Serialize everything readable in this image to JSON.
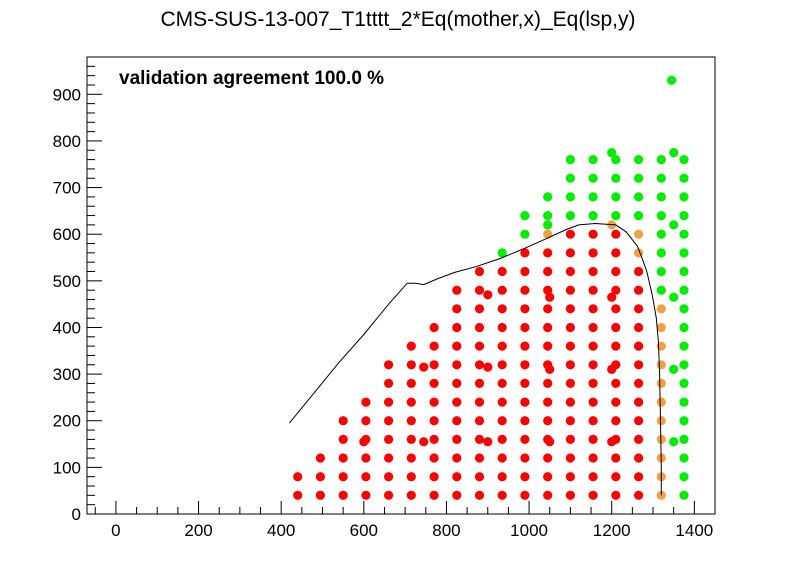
{
  "chart_data": {
    "type": "scatter",
    "title": "CMS-SUS-13-007_T1tttt_2*Eq(mother,x)_Eq(lsp,y)",
    "annotation": "validation agreement 100.0 %",
    "xlabel": "",
    "ylabel": "",
    "xlim": [
      -70,
      1450
    ],
    "ylim": [
      0,
      980
    ],
    "x_ticks": [
      0,
      200,
      400,
      600,
      800,
      1000,
      1200,
      1400
    ],
    "y_ticks": [
      0,
      100,
      200,
      300,
      400,
      500,
      600,
      700,
      800,
      900
    ],
    "grid": false,
    "colors": {
      "excluded": "#ff0000",
      "allowed": "#00ee00",
      "border": "#f5a040",
      "curve": "#000000"
    },
    "series": [
      {
        "status": "excluded",
        "points": [
          [
            440,
            40
          ],
          [
            440,
            80
          ],
          [
            495,
            40
          ],
          [
            495,
            80
          ],
          [
            495,
            120
          ],
          [
            550,
            40
          ],
          [
            550,
            80
          ],
          [
            550,
            120
          ],
          [
            550,
            160
          ],
          [
            550,
            200
          ],
          [
            605,
            40
          ],
          [
            605,
            80
          ],
          [
            605,
            120
          ],
          [
            605,
            160
          ],
          [
            605,
            200
          ],
          [
            605,
            240
          ],
          [
            600,
            155
          ],
          [
            660,
            40
          ],
          [
            660,
            80
          ],
          [
            660,
            120
          ],
          [
            660,
            160
          ],
          [
            660,
            200
          ],
          [
            660,
            240
          ],
          [
            660,
            280
          ],
          [
            660,
            320
          ],
          [
            715,
            40
          ],
          [
            715,
            80
          ],
          [
            715,
            120
          ],
          [
            715,
            160
          ],
          [
            715,
            200
          ],
          [
            715,
            240
          ],
          [
            715,
            280
          ],
          [
            715,
            320
          ],
          [
            715,
            360
          ],
          [
            745,
            155
          ],
          [
            745,
            315
          ],
          [
            770,
            40
          ],
          [
            770,
            80
          ],
          [
            770,
            120
          ],
          [
            770,
            160
          ],
          [
            770,
            200
          ],
          [
            770,
            240
          ],
          [
            770,
            280
          ],
          [
            770,
            320
          ],
          [
            770,
            360
          ],
          [
            770,
            400
          ],
          [
            825,
            40
          ],
          [
            825,
            80
          ],
          [
            825,
            120
          ],
          [
            825,
            160
          ],
          [
            825,
            200
          ],
          [
            825,
            240
          ],
          [
            825,
            280
          ],
          [
            825,
            320
          ],
          [
            825,
            360
          ],
          [
            825,
            400
          ],
          [
            825,
            440
          ],
          [
            825,
            480
          ],
          [
            880,
            40
          ],
          [
            880,
            80
          ],
          [
            880,
            120
          ],
          [
            880,
            160
          ],
          [
            880,
            200
          ],
          [
            880,
            240
          ],
          [
            880,
            280
          ],
          [
            880,
            320
          ],
          [
            880,
            360
          ],
          [
            880,
            400
          ],
          [
            880,
            440
          ],
          [
            880,
            480
          ],
          [
            880,
            520
          ],
          [
            900,
            155
          ],
          [
            900,
            315
          ],
          [
            900,
            470
          ],
          [
            935,
            40
          ],
          [
            935,
            80
          ],
          [
            935,
            120
          ],
          [
            935,
            160
          ],
          [
            935,
            200
          ],
          [
            935,
            240
          ],
          [
            935,
            280
          ],
          [
            935,
            320
          ],
          [
            935,
            360
          ],
          [
            935,
            400
          ],
          [
            935,
            440
          ],
          [
            935,
            480
          ],
          [
            935,
            520
          ],
          [
            990,
            40
          ],
          [
            990,
            80
          ],
          [
            990,
            120
          ],
          [
            990,
            160
          ],
          [
            990,
            200
          ],
          [
            990,
            240
          ],
          [
            990,
            280
          ],
          [
            990,
            320
          ],
          [
            990,
            360
          ],
          [
            990,
            400
          ],
          [
            990,
            440
          ],
          [
            990,
            480
          ],
          [
            990,
            520
          ],
          [
            990,
            560
          ],
          [
            1045,
            40
          ],
          [
            1045,
            80
          ],
          [
            1045,
            120
          ],
          [
            1045,
            160
          ],
          [
            1045,
            200
          ],
          [
            1045,
            240
          ],
          [
            1045,
            280
          ],
          [
            1045,
            320
          ],
          [
            1045,
            360
          ],
          [
            1045,
            400
          ],
          [
            1045,
            440
          ],
          [
            1045,
            480
          ],
          [
            1045,
            520
          ],
          [
            1045,
            560
          ],
          [
            1050,
            155
          ],
          [
            1050,
            310
          ],
          [
            1050,
            465
          ],
          [
            1100,
            40
          ],
          [
            1100,
            80
          ],
          [
            1100,
            120
          ],
          [
            1100,
            160
          ],
          [
            1100,
            200
          ],
          [
            1100,
            240
          ],
          [
            1100,
            280
          ],
          [
            1100,
            320
          ],
          [
            1100,
            360
          ],
          [
            1100,
            400
          ],
          [
            1100,
            440
          ],
          [
            1100,
            480
          ],
          [
            1100,
            520
          ],
          [
            1100,
            560
          ],
          [
            1100,
            600
          ],
          [
            1155,
            40
          ],
          [
            1155,
            80
          ],
          [
            1155,
            120
          ],
          [
            1155,
            160
          ],
          [
            1155,
            200
          ],
          [
            1155,
            240
          ],
          [
            1155,
            280
          ],
          [
            1155,
            320
          ],
          [
            1155,
            360
          ],
          [
            1155,
            400
          ],
          [
            1155,
            440
          ],
          [
            1155,
            480
          ],
          [
            1155,
            520
          ],
          [
            1155,
            560
          ],
          [
            1155,
            600
          ],
          [
            1210,
            40
          ],
          [
            1210,
            80
          ],
          [
            1210,
            120
          ],
          [
            1210,
            160
          ],
          [
            1210,
            200
          ],
          [
            1210,
            240
          ],
          [
            1210,
            280
          ],
          [
            1210,
            320
          ],
          [
            1210,
            360
          ],
          [
            1210,
            400
          ],
          [
            1210,
            440
          ],
          [
            1210,
            480
          ],
          [
            1210,
            520
          ],
          [
            1210,
            560
          ],
          [
            1210,
            600
          ],
          [
            1200,
            155
          ],
          [
            1200,
            310
          ],
          [
            1200,
            465
          ],
          [
            1265,
            40
          ],
          [
            1265,
            80
          ],
          [
            1265,
            120
          ],
          [
            1265,
            160
          ],
          [
            1265,
            200
          ],
          [
            1265,
            240
          ],
          [
            1265,
            280
          ],
          [
            1265,
            320
          ],
          [
            1265,
            360
          ],
          [
            1265,
            400
          ],
          [
            1265,
            440
          ],
          [
            1265,
            480
          ],
          [
            1265,
            520
          ]
        ]
      },
      {
        "status": "border",
        "points": [
          [
            1045,
            600
          ],
          [
            1200,
            620
          ],
          [
            1265,
            560
          ],
          [
            1265,
            600
          ],
          [
            1320,
            40
          ],
          [
            1320,
            80
          ],
          [
            1320,
            120
          ],
          [
            1320,
            160
          ],
          [
            1320,
            200
          ],
          [
            1320,
            240
          ],
          [
            1320,
            280
          ],
          [
            1320,
            320
          ],
          [
            1320,
            360
          ],
          [
            1320,
            400
          ],
          [
            1320,
            440
          ]
        ]
      },
      {
        "status": "allowed",
        "points": [
          [
            935,
            560
          ],
          [
            990,
            600
          ],
          [
            990,
            640
          ],
          [
            1045,
            620
          ],
          [
            1045,
            640
          ],
          [
            1045,
            680
          ],
          [
            1100,
            640
          ],
          [
            1100,
            680
          ],
          [
            1100,
            720
          ],
          [
            1100,
            760
          ],
          [
            1155,
            640
          ],
          [
            1155,
            680
          ],
          [
            1155,
            720
          ],
          [
            1155,
            760
          ],
          [
            1210,
            640
          ],
          [
            1210,
            680
          ],
          [
            1210,
            720
          ],
          [
            1210,
            760
          ],
          [
            1200,
            775
          ],
          [
            1265,
            640
          ],
          [
            1265,
            680
          ],
          [
            1265,
            720
          ],
          [
            1265,
            760
          ],
          [
            1320,
            480
          ],
          [
            1320,
            520
          ],
          [
            1320,
            560
          ],
          [
            1320,
            600
          ],
          [
            1320,
            640
          ],
          [
            1320,
            680
          ],
          [
            1320,
            720
          ],
          [
            1320,
            760
          ],
          [
            1350,
            155
          ],
          [
            1350,
            310
          ],
          [
            1350,
            465
          ],
          [
            1350,
            620
          ],
          [
            1350,
            775
          ],
          [
            1345,
            930
          ],
          [
            1375,
            40
          ],
          [
            1375,
            80
          ],
          [
            1375,
            120
          ],
          [
            1375,
            160
          ],
          [
            1375,
            200
          ],
          [
            1375,
            240
          ],
          [
            1375,
            280
          ],
          [
            1375,
            320
          ],
          [
            1375,
            360
          ],
          [
            1375,
            400
          ],
          [
            1375,
            440
          ],
          [
            1375,
            480
          ],
          [
            1375,
            520
          ],
          [
            1375,
            560
          ],
          [
            1375,
            600
          ],
          [
            1375,
            640
          ],
          [
            1375,
            680
          ],
          [
            1375,
            720
          ],
          [
            1375,
            760
          ]
        ]
      }
    ],
    "exclusion_curve": [
      [
        420,
        195
      ],
      [
        480,
        260
      ],
      [
        540,
        325
      ],
      [
        600,
        385
      ],
      [
        660,
        450
      ],
      [
        705,
        495
      ],
      [
        725,
        495
      ],
      [
        745,
        492
      ],
      [
        780,
        505
      ],
      [
        820,
        518
      ],
      [
        870,
        530
      ],
      [
        930,
        548
      ],
      [
        990,
        570
      ],
      [
        1040,
        590
      ],
      [
        1090,
        610
      ],
      [
        1120,
        620
      ],
      [
        1160,
        623
      ],
      [
        1210,
        620
      ],
      [
        1235,
        605
      ],
      [
        1262,
        575
      ],
      [
        1275,
        545
      ],
      [
        1285,
        520
      ],
      [
        1298,
        470
      ],
      [
        1308,
        420
      ],
      [
        1313,
        370
      ],
      [
        1316,
        300
      ],
      [
        1318,
        200
      ],
      [
        1320,
        100
      ],
      [
        1320,
        40
      ]
    ]
  }
}
